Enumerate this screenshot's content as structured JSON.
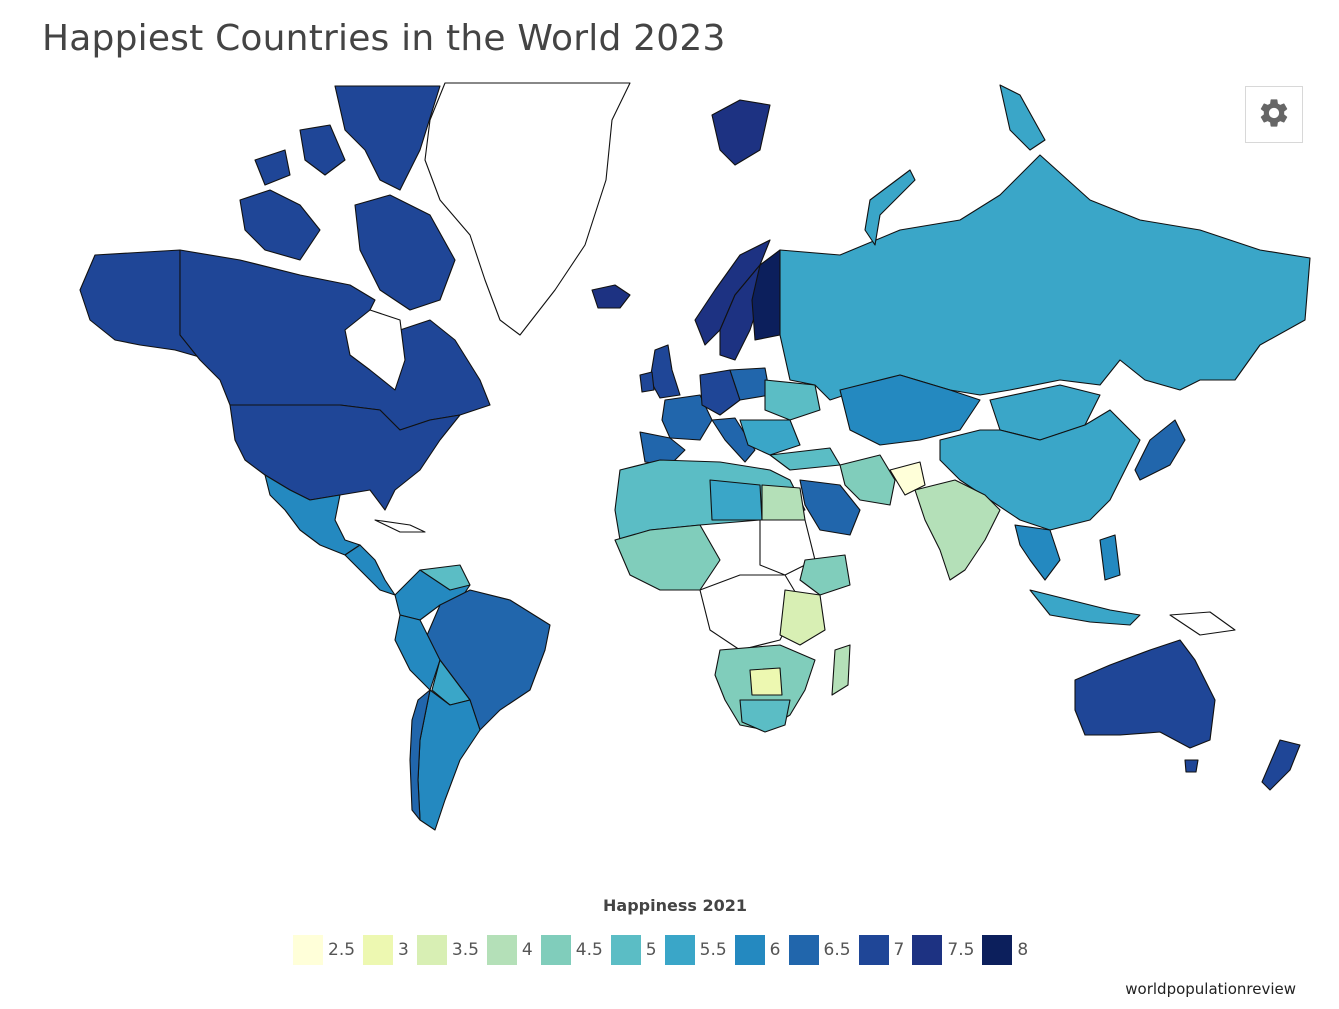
{
  "title": "Happiest Countries in the World 2023",
  "legend": {
    "title": "Happiness 2021",
    "items": [
      {
        "label": "2.5",
        "color": "#ffffd9"
      },
      {
        "label": "3",
        "color": "#edf8b1"
      },
      {
        "label": "3.5",
        "color": "#d8efb4"
      },
      {
        "label": "4",
        "color": "#b4e0b8"
      },
      {
        "label": "4.5",
        "color": "#80cdbb"
      },
      {
        "label": "5",
        "color": "#5bbdc5"
      },
      {
        "label": "5.5",
        "color": "#3aa6c8"
      },
      {
        "label": "6",
        "color": "#2489c0"
      },
      {
        "label": "6.5",
        "color": "#2166ac"
      },
      {
        "label": "7",
        "color": "#1f4697"
      },
      {
        "label": "7.5",
        "color": "#1d3282"
      },
      {
        "label": "8",
        "color": "#0c1f5c"
      }
    ]
  },
  "toolbar": {
    "settings_icon": "gear-icon"
  },
  "source": "worldpopulationreview",
  "colors": {
    "no_data": "#ffffff",
    "border": "#111111"
  }
}
